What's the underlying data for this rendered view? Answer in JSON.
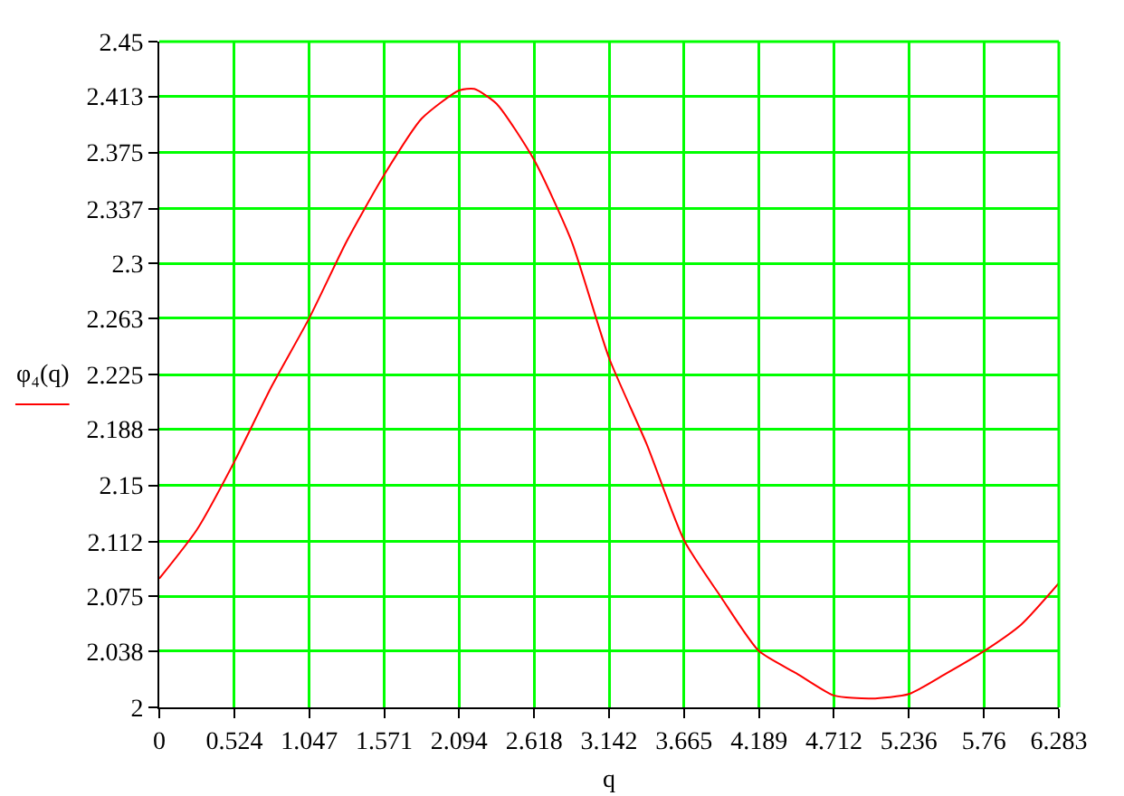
{
  "chart_data": {
    "type": "line",
    "xlabel": "q",
    "ylabel": "φ₄(q)",
    "x": [
      0,
      0.262,
      0.524,
      0.785,
      1.047,
      1.309,
      1.571,
      1.833,
      2.094,
      2.2,
      2.356,
      2.618,
      2.88,
      3.142,
      3.404,
      3.665,
      3.927,
      4.189,
      4.45,
      4.712,
      4.974,
      5.236,
      5.498,
      5.76,
      6.02,
      6.283
    ],
    "series": [
      {
        "color": "#ff0000",
        "values": [
          2.087,
          2.12,
          2.166,
          2.217,
          2.263,
          2.315,
          2.36,
          2.398,
          2.417,
          2.418,
          2.408,
          2.37,
          2.315,
          2.236,
          2.178,
          2.113,
          2.074,
          2.038,
          2.023,
          2.008,
          2.006,
          2.009,
          2.023,
          2.038,
          2.056,
          2.084
        ]
      }
    ],
    "xlim": [
      0,
      6.283
    ],
    "xticks": [
      0,
      0.524,
      1.047,
      1.571,
      2.094,
      2.618,
      3.142,
      3.665,
      4.189,
      4.712,
      5.236,
      5.76,
      6.283
    ],
    "ylim": [
      2,
      2.45
    ],
    "yticks": [
      2,
      2.038,
      2.075,
      2.112,
      2.15,
      2.188,
      2.225,
      2.263,
      2.3,
      2.337,
      2.375,
      2.413,
      2.45
    ],
    "grid": true,
    "legend": false,
    "marker": "none",
    "line_style": "solid"
  }
}
